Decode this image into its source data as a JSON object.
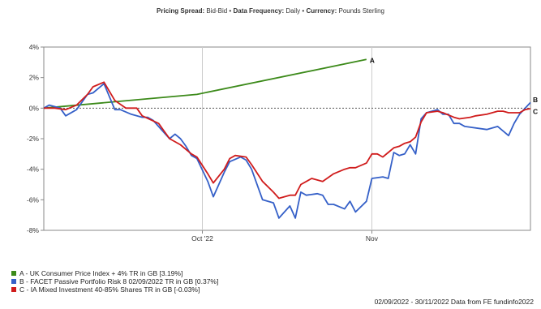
{
  "header": {
    "spread_label": "Pricing Spread:",
    "spread_value": "Bid-Bid",
    "freq_label": "Data Frequency:",
    "freq_value": "Daily",
    "currency_label": "Currency:",
    "currency_value": "Pounds Sterling",
    "sep": "•"
  },
  "legend": [
    {
      "text": "A - UK Consumer Price Index + 4% TR in GB [3.19%]",
      "color": "#3c8a1a"
    },
    {
      "text": "B - FACET Passive Portfolio Risk 8 02/09/2022 TR in GB [0.37%]",
      "color": "#3560c8"
    },
    {
      "text": "C - IA Mixed Investment 40-85% Shares TR in GB [-0.03%]",
      "color": "#d01c1c"
    }
  ],
  "footer": "02/09/2022 - 30/11/2022 Data from FE fundinfo2022",
  "chart_data": {
    "type": "line",
    "ylim": [
      -8,
      4
    ],
    "yticks": [
      "4%",
      "2%",
      "0%",
      "-2%",
      "-4%",
      "-6%",
      "-8%"
    ],
    "x_ticks": [
      {
        "label": "Oct '22",
        "date": "2022-10-01"
      },
      {
        "label": "Nov",
        "date": "2022-11-01"
      }
    ],
    "x_range": [
      "2022-09-02",
      "2022-11-30"
    ],
    "series": [
      {
        "name": "A",
        "end_label": "A",
        "color": "#3c8a1a",
        "points": [
          [
            "2022-09-02",
            0
          ],
          [
            "2022-09-30",
            0.9
          ],
          [
            "2022-10-31",
            3.19
          ]
        ]
      },
      {
        "name": "B",
        "end_label": "B",
        "color": "#3560c8",
        "points": [
          [
            "2022-09-02",
            0
          ],
          [
            "2022-09-03",
            0.2
          ],
          [
            "2022-09-05",
            0
          ],
          [
            "2022-09-06",
            -0.5
          ],
          [
            "2022-09-08",
            -0.1
          ],
          [
            "2022-09-10",
            0.9
          ],
          [
            "2022-09-11",
            1.0
          ],
          [
            "2022-09-13",
            1.6
          ],
          [
            "2022-09-15",
            -0.1
          ],
          [
            "2022-09-16",
            -0.1
          ],
          [
            "2022-09-18",
            -0.4
          ],
          [
            "2022-09-20",
            -0.6
          ],
          [
            "2022-09-21",
            -0.6
          ],
          [
            "2022-09-22",
            -0.8
          ],
          [
            "2022-09-24",
            -1.6
          ],
          [
            "2022-09-25",
            -2.0
          ],
          [
            "2022-09-26",
            -1.7
          ],
          [
            "2022-09-27",
            -2.0
          ],
          [
            "2022-09-28",
            -2.5
          ],
          [
            "2022-09-29",
            -3.1
          ],
          [
            "2022-09-30",
            -3.3
          ],
          [
            "2022-10-02",
            -4.8
          ],
          [
            "2022-10-03",
            -5.8
          ],
          [
            "2022-10-05",
            -4.2
          ],
          [
            "2022-10-06",
            -3.5
          ],
          [
            "2022-10-08",
            -3.2
          ],
          [
            "2022-10-09",
            -3.4
          ],
          [
            "2022-10-10",
            -4.0
          ],
          [
            "2022-10-12",
            -6.0
          ],
          [
            "2022-10-14",
            -6.2
          ],
          [
            "2022-10-15",
            -7.2
          ],
          [
            "2022-10-17",
            -6.4
          ],
          [
            "2022-10-18",
            -7.2
          ],
          [
            "2022-10-19",
            -5.5
          ],
          [
            "2022-10-20",
            -5.7
          ],
          [
            "2022-10-22",
            -5.6
          ],
          [
            "2022-10-23",
            -5.7
          ],
          [
            "2022-10-24",
            -6.3
          ],
          [
            "2022-10-25",
            -6.3
          ],
          [
            "2022-10-27",
            -6.6
          ],
          [
            "2022-10-28",
            -6.1
          ],
          [
            "2022-10-29",
            -6.8
          ],
          [
            "2022-10-31",
            -6.1
          ],
          [
            "2022-11-01",
            -4.6
          ],
          [
            "2022-11-03",
            -4.5
          ],
          [
            "2022-11-04",
            -4.6
          ],
          [
            "2022-11-05",
            -2.9
          ],
          [
            "2022-11-06",
            -3.1
          ],
          [
            "2022-11-07",
            -3.0
          ],
          [
            "2022-11-08",
            -2.4
          ],
          [
            "2022-11-09",
            -3.0
          ],
          [
            "2022-11-10",
            -0.7
          ],
          [
            "2022-11-11",
            -0.3
          ],
          [
            "2022-11-13",
            -0.1
          ],
          [
            "2022-11-14",
            -0.4
          ],
          [
            "2022-11-15",
            -0.4
          ],
          [
            "2022-11-16",
            -1.0
          ],
          [
            "2022-11-17",
            -1.0
          ],
          [
            "2022-11-18",
            -1.2
          ],
          [
            "2022-11-22",
            -1.4
          ],
          [
            "2022-11-24",
            -1.2
          ],
          [
            "2022-11-26",
            -1.8
          ],
          [
            "2022-11-27",
            -1.0
          ],
          [
            "2022-11-28",
            -0.4
          ],
          [
            "2022-11-30",
            0.37
          ]
        ]
      },
      {
        "name": "C",
        "end_label": "C",
        "color": "#d01c1c",
        "points": [
          [
            "2022-09-02",
            0
          ],
          [
            "2022-09-04",
            0
          ],
          [
            "2022-09-06",
            -0.1
          ],
          [
            "2022-09-08",
            0.2
          ],
          [
            "2022-09-10",
            0.9
          ],
          [
            "2022-09-11",
            1.4
          ],
          [
            "2022-09-13",
            1.7
          ],
          [
            "2022-09-15",
            0.5
          ],
          [
            "2022-09-17",
            0
          ],
          [
            "2022-09-19",
            0
          ],
          [
            "2022-09-20",
            -0.5
          ],
          [
            "2022-09-23",
            -1.0
          ],
          [
            "2022-09-24",
            -1.5
          ],
          [
            "2022-09-25",
            -2.0
          ],
          [
            "2022-09-27",
            -2.4
          ],
          [
            "2022-09-29",
            -3.0
          ],
          [
            "2022-09-30",
            -3.2
          ],
          [
            "2022-10-02",
            -4.3
          ],
          [
            "2022-10-03",
            -4.9
          ],
          [
            "2022-10-05",
            -4.0
          ],
          [
            "2022-10-06",
            -3.3
          ],
          [
            "2022-10-07",
            -3.1
          ],
          [
            "2022-10-09",
            -3.2
          ],
          [
            "2022-10-10",
            -3.7
          ],
          [
            "2022-10-12",
            -4.8
          ],
          [
            "2022-10-14",
            -5.5
          ],
          [
            "2022-10-15",
            -5.9
          ],
          [
            "2022-10-17",
            -5.7
          ],
          [
            "2022-10-18",
            -5.7
          ],
          [
            "2022-10-19",
            -5.0
          ],
          [
            "2022-10-21",
            -4.6
          ],
          [
            "2022-10-23",
            -4.8
          ],
          [
            "2022-10-25",
            -4.3
          ],
          [
            "2022-10-27",
            -4.0
          ],
          [
            "2022-10-28",
            -3.9
          ],
          [
            "2022-10-29",
            -3.9
          ],
          [
            "2022-10-31",
            -3.6
          ],
          [
            "2022-11-01",
            -3.0
          ],
          [
            "2022-11-02",
            -3.0
          ],
          [
            "2022-11-03",
            -3.2
          ],
          [
            "2022-11-04",
            -2.9
          ],
          [
            "2022-11-05",
            -2.6
          ],
          [
            "2022-11-06",
            -2.5
          ],
          [
            "2022-11-07",
            -2.3
          ],
          [
            "2022-11-08",
            -2.2
          ],
          [
            "2022-11-09",
            -1.9
          ],
          [
            "2022-11-10",
            -0.9
          ],
          [
            "2022-11-11",
            -0.3
          ],
          [
            "2022-11-13",
            -0.2
          ],
          [
            "2022-11-14",
            -0.3
          ],
          [
            "2022-11-16",
            -0.6
          ],
          [
            "2022-11-17",
            -0.7
          ],
          [
            "2022-11-19",
            -0.6
          ],
          [
            "2022-11-20",
            -0.5
          ],
          [
            "2022-11-22",
            -0.4
          ],
          [
            "2022-11-24",
            -0.2
          ],
          [
            "2022-11-25",
            -0.2
          ],
          [
            "2022-11-26",
            -0.3
          ],
          [
            "2022-11-28",
            -0.3
          ],
          [
            "2022-11-29",
            -0.1
          ],
          [
            "2022-11-30",
            -0.03
          ]
        ]
      }
    ]
  }
}
